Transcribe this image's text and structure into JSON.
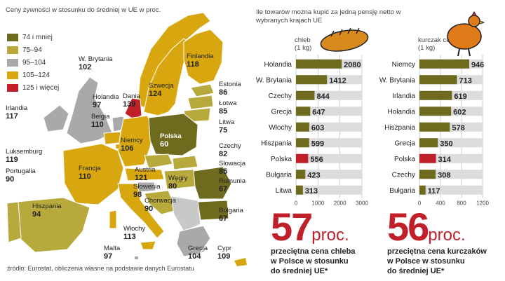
{
  "legend": {
    "title": "Ceny żywności w stosunku do średniej w UE w proc.",
    "items": [
      {
        "label": "74 i mniej",
        "color": "#6e6a1e"
      },
      {
        "label": "75–94",
        "color": "#b8a93c"
      },
      {
        "label": "95–104",
        "color": "#a9a9a9"
      },
      {
        "label": "105–124",
        "color": "#d8a710"
      },
      {
        "label": "125 i więcej",
        "color": "#c0202a"
      }
    ]
  },
  "map": {
    "countries": [
      {
        "name": "W. Brytania",
        "value": "102"
      },
      {
        "name": "Irlandia",
        "value": "117"
      },
      {
        "name": "Holandia",
        "value": "97"
      },
      {
        "name": "Belgia",
        "value": "110"
      },
      {
        "name": "Dania",
        "value": "139"
      },
      {
        "name": "Finlandia",
        "value": "118"
      },
      {
        "name": "Szwecja",
        "value": "124"
      },
      {
        "name": "Estonia",
        "value": "86"
      },
      {
        "name": "Łotwa",
        "value": "85"
      },
      {
        "name": "Litwa",
        "value": "75"
      },
      {
        "name": "Niemcy",
        "value": "106"
      },
      {
        "name": "Polska",
        "value": "60"
      },
      {
        "name": "Czechy",
        "value": "82"
      },
      {
        "name": "Słowacja",
        "value": "85"
      },
      {
        "name": "Luksemburg",
        "value": "119"
      },
      {
        "name": "Francja",
        "value": "110"
      },
      {
        "name": "Austria",
        "value": "121"
      },
      {
        "name": "Węgry",
        "value": "80"
      },
      {
        "name": "Rumunia",
        "value": "67"
      },
      {
        "name": "Słowenia",
        "value": "98"
      },
      {
        "name": "Chorwacja",
        "value": "90"
      },
      {
        "name": "Portugalia",
        "value": "90"
      },
      {
        "name": "Hiszpania",
        "value": "94"
      },
      {
        "name": "Bułgaria",
        "value": "67"
      },
      {
        "name": "Włochy",
        "value": "113"
      },
      {
        "name": "Malta",
        "value": "97"
      },
      {
        "name": "Grecja",
        "value": "104"
      },
      {
        "name": "Cypr",
        "value": "109"
      }
    ]
  },
  "intro": "Ile towarów można kupić za jedną pensję netto w wybranych krajach UE",
  "chart_data": [
    {
      "type": "bar",
      "orientation": "horizontal",
      "title": "chleb",
      "unit": "(1 kg)",
      "icon": "bread-icon",
      "categories": [
        "Holandia",
        "W. Brytania",
        "Czechy",
        "Grecja",
        "Włochy",
        "Hiszpania",
        "Polska",
        "Bułgaria",
        "Litwa"
      ],
      "values": [
        2080,
        1412,
        844,
        647,
        603,
        599,
        556,
        423,
        313
      ],
      "highlight": "Polska",
      "xlim": [
        0,
        3000
      ],
      "ticks": [
        0,
        1000,
        2000,
        3000
      ]
    },
    {
      "type": "bar",
      "orientation": "horizontal",
      "title": "kurczak cały",
      "unit": "(1 kg)",
      "icon": "chicken-icon",
      "categories": [
        "Niemcy",
        "W. Brytania",
        "Irlandia",
        "Holandia",
        "Hiszpania",
        "Grecja",
        "Polska",
        "Czechy",
        "Bułgaria"
      ],
      "values": [
        946,
        713,
        619,
        602,
        578,
        350,
        314,
        308,
        117
      ],
      "highlight": "Polska",
      "xlim": [
        0,
        1200
      ],
      "ticks": [
        0,
        400,
        800,
        1200
      ]
    }
  ],
  "colors": {
    "bar": "#6e6a1e",
    "highlight": "#c0202a",
    "track": "#dcdcdc"
  },
  "highlights": [
    {
      "number": "57",
      "unit": "proc.",
      "caption": [
        "przeciętna cena chleba",
        "w Polsce w stosunku",
        "do średniej UE*"
      ]
    },
    {
      "number": "56",
      "unit": "proc.",
      "caption": [
        "przeciętna cena kurczaków",
        "w Polsce w stosunku",
        "do średniej UE*"
      ]
    }
  ],
  "source": "źródło: Eurostat, obliczenia własne na podstawie danych Eurostatu"
}
